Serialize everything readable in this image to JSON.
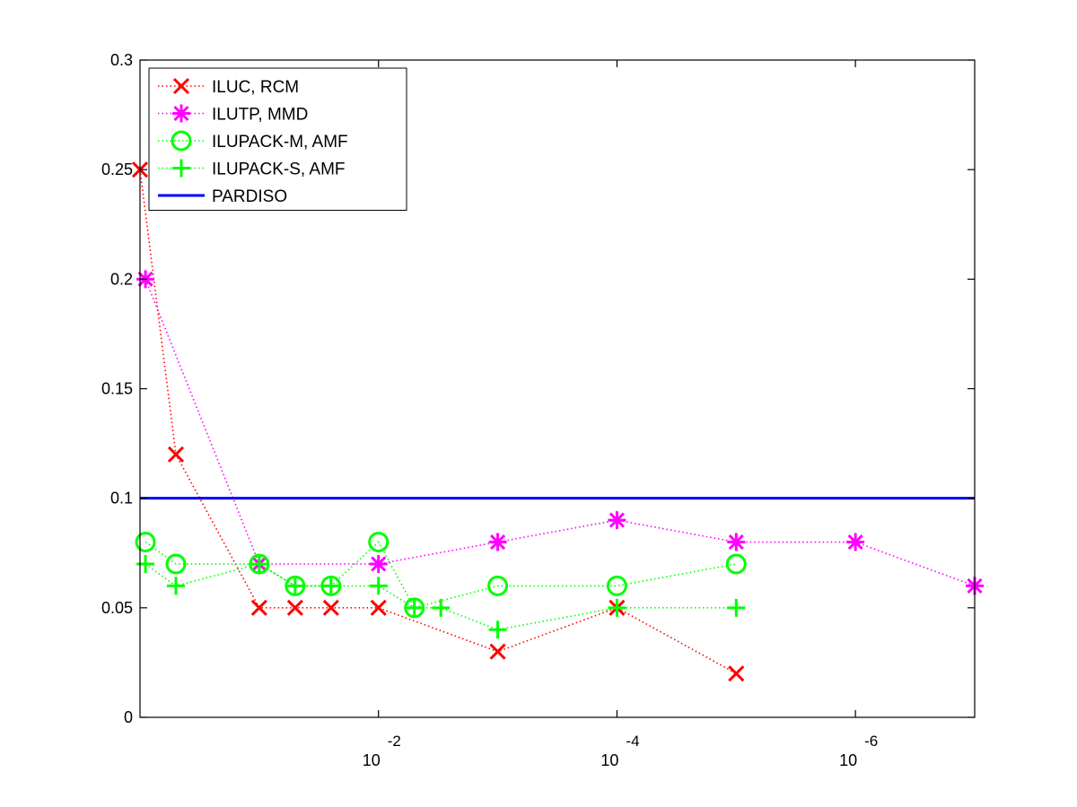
{
  "chart_data": {
    "type": "line",
    "title": "",
    "xlabel": "",
    "ylabel": "",
    "xscale": "log-reversed",
    "xlim": [
      1,
      1e-07
    ],
    "ylim": [
      0,
      0.3
    ],
    "grid": false,
    "legend_position": "top-left",
    "x_ticks": [
      {
        "value": 0.01,
        "base": "10",
        "exp": "-2"
      },
      {
        "value": 0.0001,
        "base": "10",
        "exp": "-4"
      },
      {
        "value": 1e-06,
        "base": "10",
        "exp": "-6"
      }
    ],
    "y_ticks": [
      {
        "value": 0,
        "label": "0"
      },
      {
        "value": 0.05,
        "label": "0.05"
      },
      {
        "value": 0.1,
        "label": "0.1"
      },
      {
        "value": 0.15,
        "label": "0.15"
      },
      {
        "value": 0.2,
        "label": "0.2"
      },
      {
        "value": 0.25,
        "label": "0.25"
      },
      {
        "value": 0.3,
        "label": "0.3"
      }
    ],
    "series": [
      {
        "name": "ILUC, RCM",
        "color": "#ff0000",
        "marker": "x",
        "line_style": "dotted",
        "x": [
          1,
          0.5,
          0.1,
          0.05,
          0.025,
          0.01,
          0.001,
          0.0001,
          1e-05
        ],
        "y": [
          0.25,
          0.12,
          0.05,
          0.05,
          0.05,
          0.05,
          0.03,
          0.05,
          0.02
        ]
      },
      {
        "name": "ILUTP, MMD",
        "color": "#ff00ff",
        "marker": "asterisk",
        "line_style": "dotted",
        "x": [
          0.9,
          0.1,
          0.01,
          0.001,
          0.0001,
          1e-05,
          1e-06,
          1e-07
        ],
        "y": [
          0.2,
          0.07,
          0.07,
          0.08,
          0.09,
          0.08,
          0.08,
          0.06
        ]
      },
      {
        "name": "ILUPACK-M, AMF",
        "color": "#00ff00",
        "marker": "circle",
        "line_style": "dotted",
        "x": [
          0.9,
          0.5,
          0.1,
          0.05,
          0.025,
          0.01,
          0.005,
          0.001,
          0.0001,
          1e-05
        ],
        "y": [
          0.08,
          0.07,
          0.07,
          0.06,
          0.06,
          0.08,
          0.05,
          0.06,
          0.06,
          0.07
        ]
      },
      {
        "name": "ILUPACK-S, AMF",
        "color": "#00ff00",
        "marker": "plus",
        "line_style": "dotted",
        "x": [
          0.9,
          0.5,
          0.1,
          0.05,
          0.025,
          0.01,
          0.005,
          0.003,
          0.001,
          0.0001,
          1e-05
        ],
        "y": [
          0.07,
          0.06,
          0.07,
          0.06,
          0.06,
          0.06,
          0.05,
          0.05,
          0.04,
          0.05,
          0.05
        ]
      },
      {
        "name": "PARDISO",
        "color": "#0000ff",
        "marker": "none",
        "line_style": "solid",
        "x": [
          1,
          1e-07
        ],
        "y": [
          0.1,
          0.1
        ]
      }
    ]
  }
}
